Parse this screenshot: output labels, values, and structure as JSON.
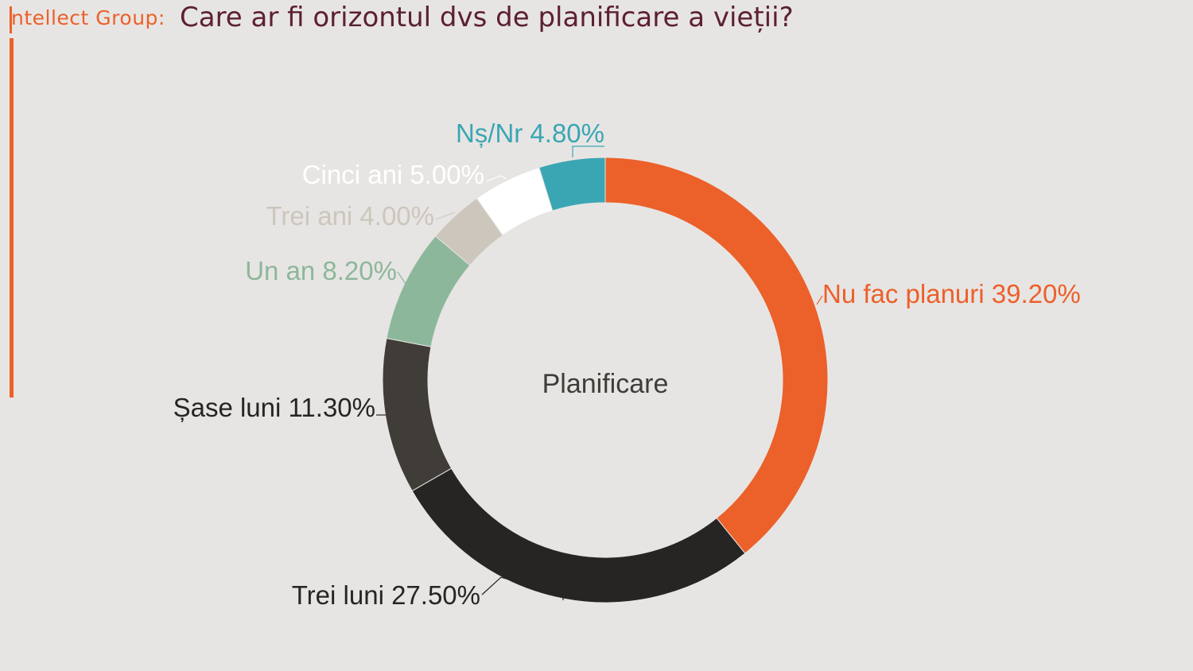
{
  "header": {
    "brand": "ntellect Group:",
    "title": "Care ar fi orizontul dvs de planificare a vieții?"
  },
  "colors": {
    "accent": "#ec602a",
    "title": "#5c2033",
    "background": "#e7e5e3"
  },
  "chart_data": {
    "type": "pie",
    "variant": "donut",
    "center_label": "Planificare",
    "legend": "none",
    "slices": [
      {
        "name": "Nu fac planuri",
        "value": 39.2,
        "label": "Nu fac planuri 39.20%",
        "color": "#ec602a",
        "label_color": "#ec602a"
      },
      {
        "name": "Trei luni",
        "value": 27.5,
        "label": "Trei luni 27.50%",
        "color": "#262524",
        "label_color": "#262524"
      },
      {
        "name": "Șase luni",
        "value": 11.3,
        "label": "Șase luni 11.30%",
        "color": "#403c38",
        "label_color": "#262524"
      },
      {
        "name": "Un an",
        "value": 8.2,
        "label": "Un an 8.20%",
        "color": "#8db79b",
        "label_color": "#8db79b"
      },
      {
        "name": "Trei ani",
        "value": 4.0,
        "label": "Trei ani 4.00%",
        "color": "#ccc6bc",
        "label_color": "#ccc6bc"
      },
      {
        "name": "Cinci ani",
        "value": 5.0,
        "label": "Cinci ani 5.00%",
        "color": "#ffffff",
        "label_color": "#ffffff"
      },
      {
        "name": "Nș/Nr",
        "value": 4.8,
        "label": "Nș/Nr 4.80%",
        "color": "#3aa6b4",
        "label_color": "#3aa6b4"
      }
    ]
  }
}
